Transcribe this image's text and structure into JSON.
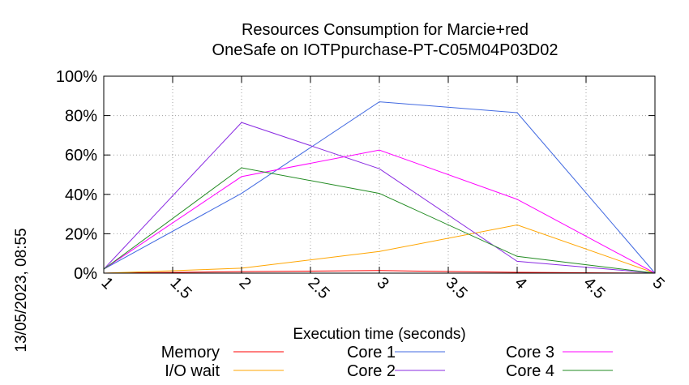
{
  "timestamp": "13/05/2023, 08:55",
  "chart_data": {
    "type": "line",
    "title_lines": [
      "Resources Consumption for Marcie+red",
      "OneSafe on IOTPpurchase-PT-C05M04P03D02"
    ],
    "xlabel": "Execution time (seconds)",
    "ylabel": "",
    "xlim": [
      1,
      5
    ],
    "ylim": [
      0,
      100
    ],
    "x_ticks": [
      "1",
      "1.5",
      "2",
      "2.5",
      "3",
      "3.5",
      "4",
      "4.5",
      "5"
    ],
    "y_ticks": [
      "0%",
      "20%",
      "40%",
      "60%",
      "80%",
      "100%"
    ],
    "grid": true,
    "legend_position": "bottom",
    "x": [
      1,
      2,
      3,
      4,
      5
    ],
    "series": [
      {
        "name": "Memory",
        "color": "#ff0000",
        "values": [
          0,
          0.8,
          1.3,
          0.4,
          0
        ]
      },
      {
        "name": "I/O wait",
        "color": "#ffa500",
        "values": [
          0,
          2.5,
          11,
          24.5,
          0
        ]
      },
      {
        "name": "Core 1",
        "color": "#4169e1",
        "values": [
          2,
          40.5,
          87,
          81.5,
          0
        ]
      },
      {
        "name": "Core 2",
        "color": "#8a2be2",
        "values": [
          2,
          76.5,
          53,
          6,
          0
        ]
      },
      {
        "name": "Core 3",
        "color": "#ff00ff",
        "values": [
          2,
          49,
          62.5,
          37.5,
          0
        ]
      },
      {
        "name": "Core 4",
        "color": "#228b22",
        "values": [
          2,
          53.5,
          40.5,
          8.5,
          0
        ]
      }
    ]
  }
}
